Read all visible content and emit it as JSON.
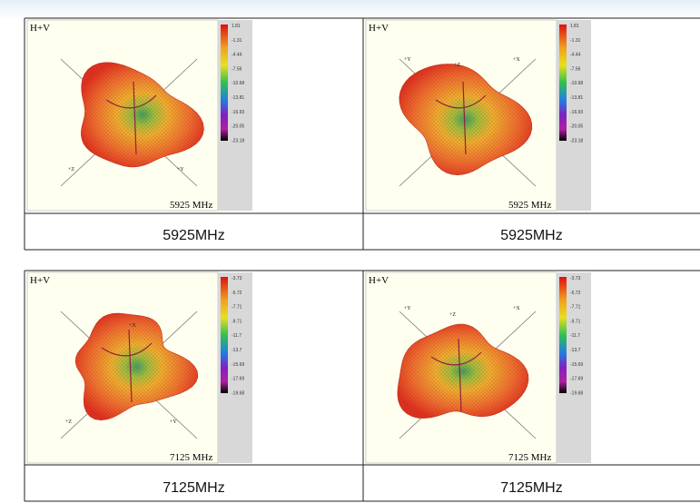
{
  "panels": [
    {
      "title": "H+V",
      "scale": [
        "1.81",
        "-1.31",
        "-4.44",
        "-7.56",
        "-10.68",
        "-13.81",
        "-16.93",
        "-20.05",
        "-23.18"
      ],
      "axes": [
        "+Z",
        "+Y"
      ],
      "frequency": "5925 MHz",
      "caption": "5925MHz"
    },
    {
      "title": "H+V",
      "scale": [
        "1.81",
        "-1.31",
        "-4.44",
        "-7.56",
        "-10.68",
        "-13.81",
        "-16.93",
        "-20.05",
        "-23.18"
      ],
      "axes": [
        "+Y",
        "+Z",
        "+X"
      ],
      "frequency": "5925 MHz",
      "caption": "5925MHz"
    },
    {
      "title": "H+V",
      "scale": [
        "-3.73",
        "-5.72",
        "-7.71",
        "-9.71",
        "-11.7",
        "-13.7",
        "-15.69",
        "-17.69",
        "-19.68"
      ],
      "axes": [
        "+Z",
        "+X",
        "+Y"
      ],
      "frequency": "7125 MHz",
      "caption": "7125MHz"
    },
    {
      "title": "H+V",
      "scale": [
        "-3.73",
        "-5.72",
        "-7.71",
        "-9.71",
        "-11.7",
        "-13.7",
        "-15.69",
        "-17.69",
        "-19.68"
      ],
      "axes": [
        "+Y",
        "+Z",
        "+X"
      ],
      "frequency": "7125 MHz",
      "caption": "7125MHz"
    }
  ]
}
